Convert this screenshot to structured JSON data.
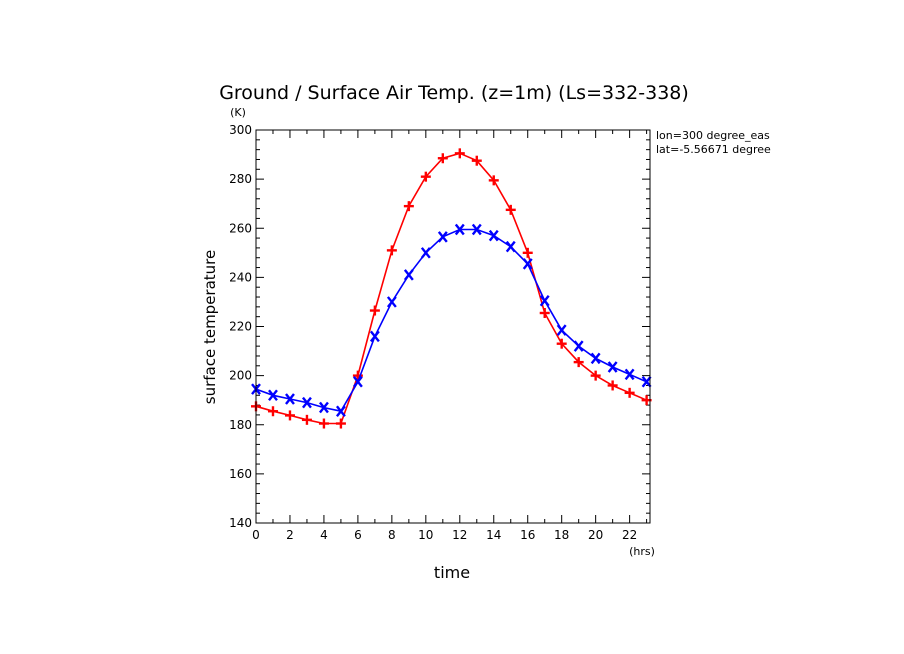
{
  "chart_data": {
    "type": "line",
    "title": "Ground / Surface Air Temp. (z=1m) (Ls=332-338)",
    "ylabel": "surface temperature",
    "yunit": "(K)",
    "xlabel": "time",
    "xunit": "(hrs)",
    "annotations": [
      "lon=300 degree_eas",
      "lat=-5.56671 degree"
    ],
    "xlim": [
      0,
      23.2
    ],
    "ylim": [
      140,
      300
    ],
    "xticks": [
      0,
      2,
      4,
      6,
      8,
      10,
      12,
      14,
      16,
      18,
      20,
      22
    ],
    "yticks": [
      140,
      160,
      180,
      200,
      220,
      240,
      260,
      280,
      300
    ],
    "grid": false,
    "x": [
      0,
      1,
      2,
      3,
      4,
      5,
      6,
      7,
      8,
      9,
      10,
      11,
      12,
      13,
      14,
      15,
      16,
      17,
      18,
      19,
      20,
      21,
      22,
      23
    ],
    "series": [
      {
        "color": "#ff0000",
        "marker": "plus",
        "values": [
          187.5,
          185.5,
          183.8,
          182.0,
          180.5,
          180.5,
          200.0,
          226.5,
          251.0,
          269.0,
          281.0,
          288.5,
          290.5,
          287.5,
          279.5,
          267.5,
          250.0,
          225.5,
          213.0,
          205.5,
          200.0,
          196.0,
          193.0,
          190.0
        ]
      },
      {
        "color": "#0000ff",
        "marker": "x",
        "values": [
          194.5,
          192.0,
          190.5,
          189.0,
          187.0,
          185.5,
          197.5,
          216.0,
          230.0,
          241.0,
          250.0,
          256.5,
          259.5,
          259.5,
          257.0,
          252.5,
          245.5,
          230.5,
          218.5,
          212.0,
          207.0,
          203.5,
          200.5,
          197.5
        ]
      }
    ]
  }
}
